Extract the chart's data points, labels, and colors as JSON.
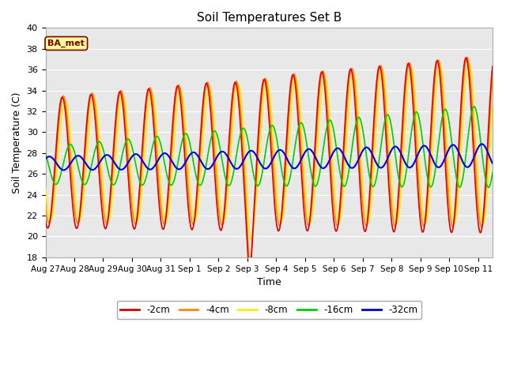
{
  "title": "Soil Temperatures Set B",
  "xlabel": "Time",
  "ylabel": "Soil Temperature (C)",
  "ylim": [
    18,
    40
  ],
  "yticks": [
    18,
    20,
    22,
    24,
    26,
    28,
    30,
    32,
    34,
    36,
    38,
    40
  ],
  "xtick_labels": [
    "Aug 27",
    "Aug 28",
    "Aug 29",
    "Aug 30",
    "Aug 31",
    "Sep 1",
    "Sep 2",
    "Sep 3",
    "Sep 4",
    "Sep 5",
    "Sep 6",
    "Sep 7",
    "Sep 8",
    "Sep 9",
    "Sep 10",
    "Sep 11"
  ],
  "series": {
    "-2cm": {
      "color": "#dd0000",
      "linewidth": 1.2
    },
    "-4cm": {
      "color": "#ff8800",
      "linewidth": 1.2
    },
    "-8cm": {
      "color": "#ffee00",
      "linewidth": 1.2
    },
    "-16cm": {
      "color": "#00cc00",
      "linewidth": 1.2
    },
    "-32cm": {
      "color": "#0000dd",
      "linewidth": 1.5
    }
  },
  "legend_labels": [
    "-2cm",
    "-4cm",
    "-8cm",
    "-16cm",
    "-32cm"
  ],
  "legend_colors": [
    "#dd0000",
    "#ff8800",
    "#ffee00",
    "#00cc00",
    "#0000dd"
  ],
  "annotation_text": "BA_met",
  "annotation_box_facecolor": "#ffff99",
  "annotation_text_color": "#800000",
  "annotation_edge_color": "#800000",
  "fig_facecolor": "#ffffff",
  "plot_facecolor": "#e8e8e8",
  "n_days": 15.5,
  "points_per_day": 120
}
